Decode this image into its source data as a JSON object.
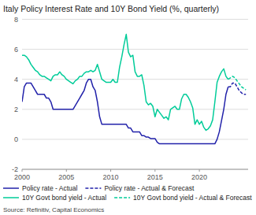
{
  "chart_data": {
    "type": "line",
    "title": "Italy Policy Interest Rate and 10Y Bond Yield (%, quarterly)",
    "source": "Source: Refinitiv, Capital Economics",
    "xlim": [
      2000,
      2025.5
    ],
    "xticks": [
      2000,
      2005,
      2010,
      2015,
      2020
    ],
    "ylim": [
      -2,
      8
    ],
    "yticks": [
      -2,
      0,
      2,
      4,
      6,
      8
    ],
    "grid": true,
    "legend": "bottom",
    "series": [
      {
        "name": "Policy rate - Actual",
        "color": "#2222aa",
        "line_style": "solid",
        "x": [
          2000.0,
          2000.25,
          2000.5,
          2000.75,
          2001.0,
          2001.25,
          2001.5,
          2001.75,
          2002.0,
          2002.25,
          2002.5,
          2002.75,
          2003.0,
          2003.25,
          2003.5,
          2003.75,
          2004.0,
          2004.25,
          2004.5,
          2004.75,
          2005.0,
          2005.25,
          2005.5,
          2005.75,
          2006.0,
          2006.25,
          2006.5,
          2006.75,
          2007.0,
          2007.25,
          2007.5,
          2007.75,
          2008.0,
          2008.25,
          2008.5,
          2008.75,
          2009.0,
          2009.25,
          2009.5,
          2009.75,
          2010.0,
          2010.25,
          2010.5,
          2010.75,
          2011.0,
          2011.25,
          2011.5,
          2011.75,
          2012.0,
          2012.25,
          2012.5,
          2012.75,
          2013.0,
          2013.25,
          2013.5,
          2013.75,
          2014.0,
          2014.25,
          2014.5,
          2014.75,
          2015.0,
          2015.25,
          2015.5,
          2015.75,
          2016.0,
          2016.25,
          2016.5,
          2016.75,
          2017.0,
          2017.25,
          2017.5,
          2017.75,
          2018.0,
          2018.25,
          2018.5,
          2018.75,
          2019.0,
          2019.25,
          2019.5,
          2019.75,
          2020.0,
          2020.25,
          2020.5,
          2020.75,
          2021.0,
          2021.25,
          2021.5,
          2021.75,
          2022.0,
          2022.25,
          2022.5,
          2022.75,
          2023.0,
          2023.25
        ],
        "values": [
          2.5,
          3.5,
          3.75,
          3.75,
          3.75,
          3.5,
          3.25,
          3.0,
          3.0,
          3.0,
          3.0,
          2.75,
          2.75,
          2.5,
          2.0,
          2.0,
          2.0,
          2.0,
          2.0,
          2.0,
          2.0,
          2.0,
          2.0,
          2.0,
          2.25,
          2.5,
          2.75,
          3.0,
          3.25,
          3.75,
          4.0,
          4.0,
          3.5,
          3.25,
          2.5,
          1.5,
          1.0,
          1.0,
          1.0,
          1.0,
          1.0,
          1.0,
          1.0,
          1.0,
          1.0,
          1.0,
          1.0,
          1.0,
          0.75,
          0.75,
          0.5,
          0.5,
          0.5,
          0.5,
          0.25,
          0.25,
          0.15,
          0.15,
          0.05,
          0.05,
          0.05,
          -0.2,
          -0.3,
          -0.3,
          -0.3,
          -0.3,
          -0.3,
          -0.3,
          -0.3,
          -0.3,
          -0.3,
          -0.3,
          -0.3,
          -0.3,
          -0.3,
          -0.3,
          -0.3,
          -0.3,
          -0.3,
          -0.3,
          -0.3,
          -0.3,
          -0.3,
          -0.3,
          -0.3,
          -0.3,
          -0.3,
          -0.3,
          0.0,
          0.5,
          1.25,
          2.0,
          3.0,
          3.5
        ]
      },
      {
        "name": "Policy rate - Actual & Forecast",
        "color": "#2222aa",
        "line_style": "dashed",
        "x": [
          2023.25,
          2023.5,
          2023.75,
          2024.0,
          2024.25,
          2024.5,
          2024.75,
          2025.0,
          2025.25
        ],
        "values": [
          3.5,
          3.5,
          3.75,
          3.75,
          3.5,
          3.25,
          3.1,
          3.0,
          3.0
        ]
      },
      {
        "name": "10Y Govt bond yield - Actual",
        "color": "#00cc99",
        "line_style": "solid",
        "x": [
          2000.0,
          2000.25,
          2000.5,
          2000.75,
          2001.0,
          2001.25,
          2001.5,
          2001.75,
          2002.0,
          2002.25,
          2002.5,
          2002.75,
          2003.0,
          2003.25,
          2003.5,
          2003.75,
          2004.0,
          2004.25,
          2004.5,
          2004.75,
          2005.0,
          2005.25,
          2005.5,
          2005.75,
          2006.0,
          2006.25,
          2006.5,
          2006.75,
          2007.0,
          2007.25,
          2007.5,
          2007.75,
          2008.0,
          2008.25,
          2008.5,
          2008.75,
          2009.0,
          2009.25,
          2009.5,
          2009.75,
          2010.0,
          2010.25,
          2010.5,
          2010.75,
          2011.0,
          2011.25,
          2011.5,
          2011.75,
          2012.0,
          2012.25,
          2012.5,
          2012.75,
          2013.0,
          2013.25,
          2013.5,
          2013.75,
          2014.0,
          2014.25,
          2014.5,
          2014.75,
          2015.0,
          2015.25,
          2015.5,
          2015.75,
          2016.0,
          2016.25,
          2016.5,
          2016.75,
          2017.0,
          2017.25,
          2017.5,
          2017.75,
          2018.0,
          2018.25,
          2018.5,
          2018.75,
          2019.0,
          2019.25,
          2019.5,
          2019.75,
          2020.0,
          2020.25,
          2020.5,
          2020.75,
          2021.0,
          2021.25,
          2021.5,
          2021.75,
          2022.0,
          2022.25,
          2022.5,
          2022.75,
          2023.0,
          2023.25
        ],
        "values": [
          5.6,
          5.6,
          5.5,
          5.3,
          5.0,
          4.8,
          4.6,
          4.5,
          4.3,
          4.2,
          4.2,
          4.1,
          4.0,
          3.9,
          4.2,
          4.3,
          4.3,
          4.5,
          4.3,
          4.2,
          4.0,
          3.9,
          3.8,
          3.7,
          3.9,
          4.0,
          4.2,
          4.2,
          4.4,
          4.5,
          4.5,
          4.6,
          4.5,
          4.6,
          5.0,
          4.5,
          4.0,
          3.9,
          3.8,
          3.8,
          3.8,
          4.0,
          3.8,
          3.8,
          4.8,
          5.5,
          6.3,
          7.0,
          5.8,
          5.5,
          5.6,
          4.5,
          4.2,
          4.2,
          4.3,
          3.6,
          2.5,
          2.3,
          2.4,
          2.2,
          1.5,
          2.0,
          1.8,
          1.6,
          1.4,
          1.5,
          1.3,
          2.0,
          2.1,
          2.2,
          2.0,
          2.0,
          2.7,
          3.0,
          3.0,
          2.8,
          2.5,
          2.1,
          1.0,
          1.3,
          1.0,
          1.2,
          0.8,
          0.6,
          0.7,
          0.9,
          1.3,
          2.5,
          3.8,
          4.2,
          4.5,
          4.7,
          4.2,
          4.0
        ]
      },
      {
        "name": "10Y Govt bond yield - Actual & Forecast",
        "color": "#00cc99",
        "line_style": "dashed",
        "x": [
          2023.25,
          2023.5,
          2023.75,
          2024.0,
          2024.25,
          2024.5,
          2024.75,
          2025.0,
          2025.25
        ],
        "values": [
          4.0,
          4.1,
          4.2,
          4.1,
          3.9,
          3.7,
          3.5,
          3.4,
          3.3
        ]
      }
    ]
  }
}
